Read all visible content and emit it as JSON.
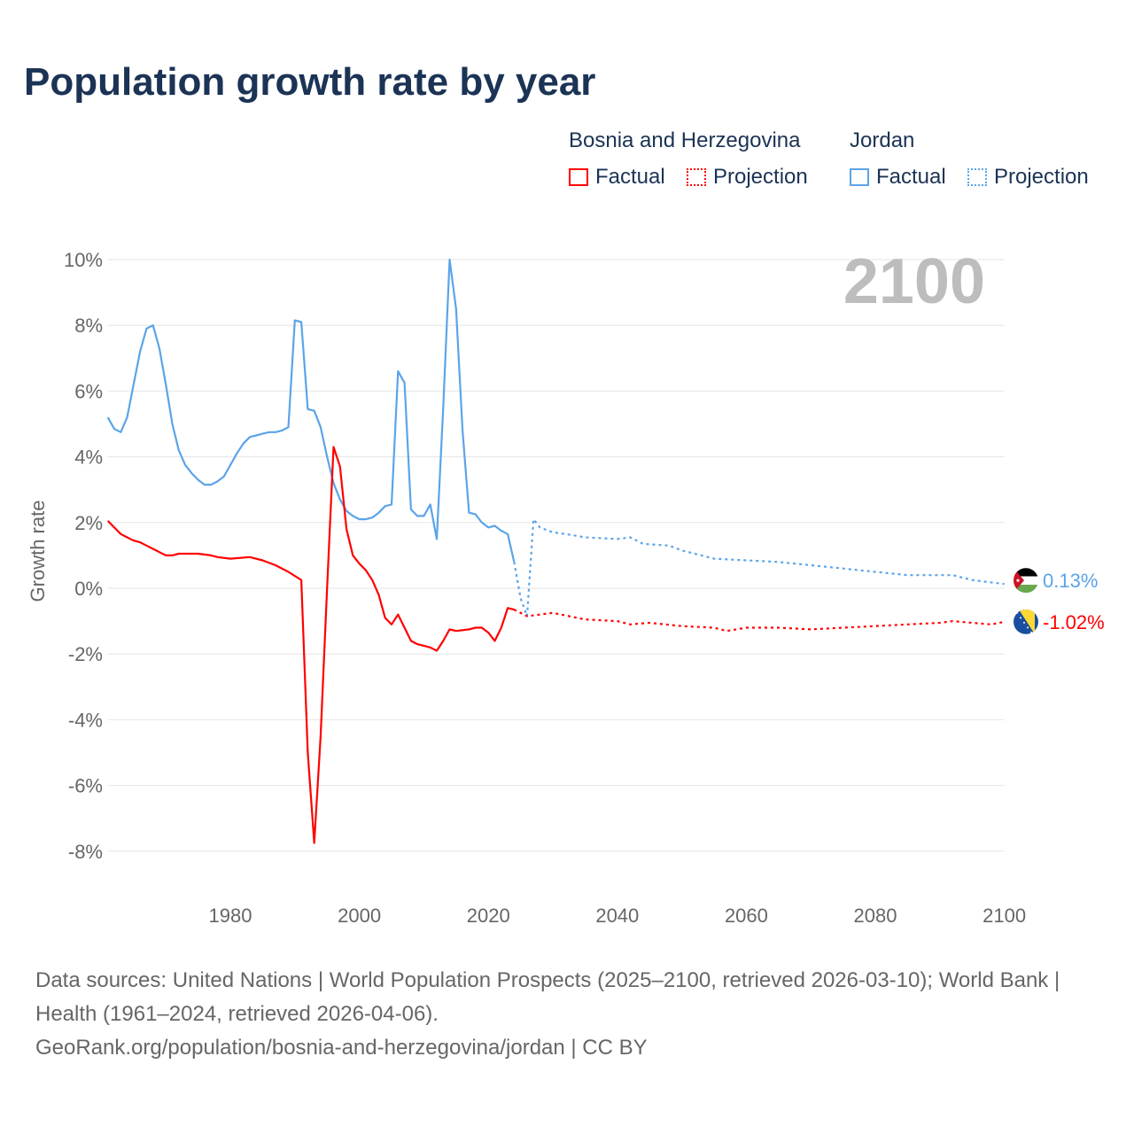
{
  "title": "Population growth rate by year",
  "legend": {
    "groups": [
      {
        "country": "Bosnia and Herzegovina",
        "factual": "Factual",
        "projection": "Projection",
        "color": "#ff0000"
      },
      {
        "country": "Jordan",
        "factual": "Factual",
        "projection": "Projection",
        "color": "#5ba4e8"
      }
    ]
  },
  "footer": {
    "sources": "Data sources: United Nations | World Population Prospects (2025–2100, retrieved 2026-03-10); World Bank | Health (1961–2024, retrieved 2026-04-06).",
    "credit": "GeoRank.org/population/bosnia-and-herzegovina/jordan | CC BY"
  },
  "chart_data": {
    "type": "line",
    "title": "Population growth rate by year",
    "ylabel": "Growth rate",
    "xlabel": "",
    "year_label": "2100",
    "xlim": [
      1961,
      2100
    ],
    "ylim": [
      -8,
      10
    ],
    "xticks": [
      "1980",
      "2000",
      "2020",
      "2040",
      "2060",
      "2080",
      "2100"
    ],
    "yticks": [
      "10%",
      "8%",
      "6%",
      "4%",
      "2%",
      "0%",
      "-2%",
      "-4%",
      "-6%",
      "-8%"
    ],
    "grid": true,
    "series": [
      {
        "name": "Jordan",
        "kind": "factual",
        "color": "#5ba4e8",
        "x": [
          1961,
          1962,
          1963,
          1964,
          1965,
          1966,
          1967,
          1968,
          1969,
          1970,
          1971,
          1972,
          1973,
          1974,
          1975,
          1976,
          1977,
          1978,
          1979,
          1980,
          1981,
          1982,
          1983,
          1984,
          1985,
          1986,
          1987,
          1988,
          1989,
          1990,
          1991,
          1992,
          1993,
          1994,
          1995,
          1996,
          1997,
          1998,
          1999,
          2000,
          2001,
          2002,
          2003,
          2004,
          2005,
          2006,
          2007,
          2008,
          2009,
          2010,
          2011,
          2012,
          2013,
          2014,
          2015,
          2016,
          2017,
          2018,
          2019,
          2020,
          2021,
          2022,
          2023,
          2024
        ],
        "y": [
          5.2,
          4.85,
          4.75,
          5.2,
          6.2,
          7.2,
          7.9,
          8.0,
          7.3,
          6.2,
          5.0,
          4.2,
          3.75,
          3.5,
          3.3,
          3.15,
          3.15,
          3.25,
          3.4,
          3.75,
          4.1,
          4.4,
          4.6,
          4.65,
          4.7,
          4.75,
          4.75,
          4.8,
          4.9,
          8.15,
          8.1,
          5.45,
          5.4,
          4.9,
          4.0,
          3.2,
          2.7,
          2.35,
          2.2,
          2.1,
          2.1,
          2.15,
          2.3,
          2.5,
          2.55,
          6.6,
          6.25,
          2.4,
          2.2,
          2.2,
          2.55,
          1.5,
          5.5,
          10.0,
          8.5,
          4.8,
          2.3,
          2.25,
          2.0,
          1.85,
          1.9,
          1.75,
          1.65,
          0.8
        ]
      },
      {
        "name": "Jordan",
        "kind": "projection",
        "color": "#5ba4e8",
        "x": [
          2024,
          2025,
          2026,
          2027,
          2028,
          2030,
          2032,
          2035,
          2040,
          2042,
          2044,
          2048,
          2050,
          2055,
          2060,
          2065,
          2070,
          2075,
          2080,
          2085,
          2090,
          2092,
          2095,
          2100
        ],
        "y": [
          0.8,
          -0.3,
          -0.85,
          2.1,
          1.85,
          1.7,
          1.65,
          1.55,
          1.5,
          1.55,
          1.35,
          1.3,
          1.15,
          0.9,
          0.85,
          0.8,
          0.7,
          0.6,
          0.5,
          0.4,
          0.4,
          0.4,
          0.25,
          0.13
        ]
      },
      {
        "name": "Bosnia and Herzegovina",
        "kind": "factual",
        "color": "#ff0000",
        "x": [
          1961,
          1962,
          1963,
          1964,
          1965,
          1966,
          1967,
          1968,
          1969,
          1970,
          1971,
          1972,
          1975,
          1977,
          1978,
          1980,
          1983,
          1985,
          1987,
          1989,
          1991,
          1992,
          1993,
          1994,
          1995,
          1996,
          1997,
          1998,
          1999,
          2000,
          2001,
          2002,
          2003,
          2004,
          2005,
          2006,
          2007,
          2008,
          2009,
          2010,
          2011,
          2012,
          2013,
          2014,
          2015,
          2017,
          2018,
          2019,
          2020,
          2021,
          2022,
          2023,
          2024
        ],
        "y": [
          2.05,
          1.85,
          1.65,
          1.55,
          1.45,
          1.4,
          1.3,
          1.2,
          1.1,
          1.0,
          1.0,
          1.05,
          1.05,
          1.0,
          0.95,
          0.9,
          0.95,
          0.85,
          0.7,
          0.5,
          0.25,
          -5.0,
          -7.75,
          -4.5,
          0,
          4.3,
          3.7,
          1.8,
          1.0,
          0.75,
          0.55,
          0.25,
          -0.2,
          -0.9,
          -1.1,
          -0.8,
          -1.2,
          -1.6,
          -1.7,
          -1.75,
          -1.8,
          -1.9,
          -1.6,
          -1.25,
          -1.3,
          -1.25,
          -1.2,
          -1.2,
          -1.35,
          -1.6,
          -1.2,
          -0.6,
          -0.65
        ]
      },
      {
        "name": "Bosnia and Herzegovina",
        "kind": "projection",
        "color": "#ff0000",
        "x": [
          2024,
          2026,
          2030,
          2035,
          2040,
          2042,
          2045,
          2050,
          2055,
          2057,
          2060,
          2065,
          2070,
          2075,
          2080,
          2085,
          2090,
          2092,
          2095,
          2098,
          2100
        ],
        "y": [
          -0.65,
          -0.85,
          -0.75,
          -0.95,
          -1.0,
          -1.1,
          -1.05,
          -1.15,
          -1.2,
          -1.3,
          -1.2,
          -1.2,
          -1.25,
          -1.2,
          -1.15,
          -1.1,
          -1.05,
          -1.0,
          -1.05,
          -1.1,
          -1.02
        ]
      }
    ],
    "end_labels": [
      {
        "country": "Jordan",
        "value": "0.13%",
        "color": "#5ba4e8",
        "flag": "jordan-flag"
      },
      {
        "country": "Bosnia and Herzegovina",
        "value": "-1.02%",
        "color": "#ff0000",
        "flag": "bosnia-flag"
      }
    ]
  }
}
